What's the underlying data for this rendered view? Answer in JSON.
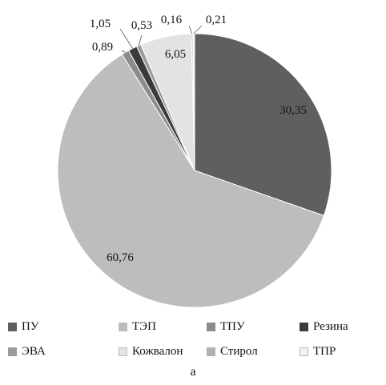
{
  "chart_data": {
    "type": "pie",
    "slices": [
      {
        "name": "ПУ",
        "label": "30,35",
        "value": 30.35,
        "color": "#5f5f5f"
      },
      {
        "name": "ТЭП",
        "label": "60,76",
        "value": 60.76,
        "color": "#bdbdbd"
      },
      {
        "name": "ТПУ",
        "label": "0,89",
        "value": 0.89,
        "color": "#8c8c8c"
      },
      {
        "name": "Резина",
        "label": "1,05",
        "value": 1.05,
        "color": "#3a3a3a"
      },
      {
        "name": "ЭВА",
        "label": "0,53",
        "value": 0.53,
        "color": "#9b9b9b"
      },
      {
        "name": "Кожвалон",
        "label": "6,05",
        "value": 6.05,
        "color": "#e3e3e3"
      },
      {
        "name": "Стирол",
        "label": "0,16",
        "value": 0.16,
        "color": "#b0b0b0"
      },
      {
        "name": "ТПР",
        "label": "0,21",
        "value": 0.21,
        "color": "#f2f2f2"
      }
    ],
    "legend_position": "bottom"
  },
  "caption": "а"
}
